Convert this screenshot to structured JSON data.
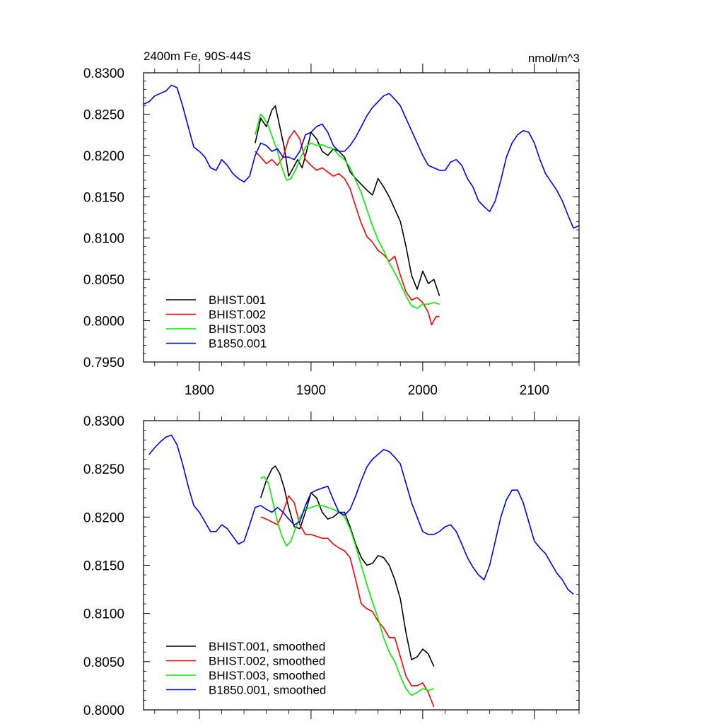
{
  "chart_data": [
    {
      "type": "line",
      "title": "2400m Fe, 90S-44S",
      "units": "nmol/m^3",
      "xlim": [
        1750,
        2140
      ],
      "ylim": [
        0.795,
        0.83
      ],
      "x_ticks": [
        1800,
        1900,
        2000,
        2100
      ],
      "y_ticks": [
        0.795,
        0.8,
        0.805,
        0.81,
        0.815,
        0.82,
        0.825,
        0.83
      ],
      "y_tick_labels": [
        "0.7950",
        "0.8000",
        "0.8050",
        "0.8100",
        "0.8150",
        "0.8200",
        "0.8250",
        "0.8300"
      ],
      "x_tick_labels": [
        "1800",
        "1900",
        "2000",
        "2100"
      ],
      "legend_position": "bottom-left",
      "grid": false,
      "series": [
        {
          "name": "BHIST.001",
          "color": "#000000",
          "x": [
            1850,
            1855,
            1860,
            1865,
            1868,
            1872,
            1876,
            1880,
            1884,
            1888,
            1892,
            1896,
            1900,
            1905,
            1910,
            1915,
            1920,
            1925,
            1930,
            1935,
            1940,
            1945,
            1950,
            1955,
            1960,
            1965,
            1970,
            1975,
            1980,
            1985,
            1990,
            1995,
            2000,
            2005,
            2010,
            2015
          ],
          "y": [
            0.8215,
            0.8245,
            0.8235,
            0.8255,
            0.826,
            0.8235,
            0.821,
            0.8175,
            0.8185,
            0.8195,
            0.8185,
            0.8205,
            0.8228,
            0.822,
            0.8205,
            0.82,
            0.8208,
            0.8205,
            0.8198,
            0.818,
            0.8172,
            0.8165,
            0.8158,
            0.8152,
            0.8172,
            0.8162,
            0.815,
            0.8135,
            0.812,
            0.809,
            0.8055,
            0.8038,
            0.806,
            0.8045,
            0.805,
            0.803
          ]
        },
        {
          "name": "BHIST.002",
          "color": "#ff0000",
          "x": [
            1850,
            1855,
            1860,
            1865,
            1870,
            1875,
            1880,
            1885,
            1890,
            1895,
            1900,
            1905,
            1910,
            1915,
            1920,
            1925,
            1930,
            1935,
            1940,
            1945,
            1950,
            1955,
            1960,
            1965,
            1970,
            1975,
            1980,
            1985,
            1990,
            1995,
            2000,
            2005,
            2008,
            2012,
            2015
          ],
          "y": [
            0.8205,
            0.8198,
            0.819,
            0.8195,
            0.8188,
            0.8198,
            0.822,
            0.823,
            0.822,
            0.8195,
            0.8188,
            0.8182,
            0.8185,
            0.818,
            0.8175,
            0.8178,
            0.8172,
            0.816,
            0.8138,
            0.8118,
            0.8102,
            0.8095,
            0.8085,
            0.808,
            0.8072,
            0.8078,
            0.8055,
            0.8035,
            0.8025,
            0.8028,
            0.8022,
            0.801,
            0.7995,
            0.8005,
            0.8005
          ]
        },
        {
          "name": "BHIST.003",
          "color": "#00ee00",
          "x": [
            1850,
            1855,
            1858,
            1862,
            1866,
            1870,
            1874,
            1878,
            1882,
            1886,
            1890,
            1895,
            1900,
            1905,
            1910,
            1915,
            1920,
            1925,
            1930,
            1935,
            1940,
            1945,
            1950,
            1955,
            1960,
            1965,
            1970,
            1975,
            1980,
            1985,
            1990,
            1995,
            2000,
            2005,
            2010,
            2015
          ],
          "y": [
            0.8225,
            0.825,
            0.8245,
            0.8235,
            0.822,
            0.8205,
            0.8185,
            0.817,
            0.8172,
            0.8182,
            0.8195,
            0.821,
            0.8215,
            0.8212,
            0.8213,
            0.821,
            0.8208,
            0.82,
            0.8195,
            0.8185,
            0.817,
            0.8155,
            0.8135,
            0.8115,
            0.8098,
            0.8085,
            0.807,
            0.8058,
            0.8045,
            0.803,
            0.8018,
            0.8015,
            0.802,
            0.802,
            0.8022,
            0.802
          ]
        },
        {
          "name": "B1850.001",
          "color": "#0000ee",
          "x": [
            1750,
            1755,
            1760,
            1765,
            1770,
            1775,
            1780,
            1785,
            1790,
            1795,
            1800,
            1805,
            1810,
            1815,
            1820,
            1825,
            1830,
            1835,
            1840,
            1845,
            1850,
            1855,
            1860,
            1865,
            1870,
            1875,
            1880,
            1885,
            1890,
            1895,
            1900,
            1905,
            1910,
            1915,
            1920,
            1925,
            1930,
            1935,
            1940,
            1945,
            1950,
            1955,
            1960,
            1965,
            1970,
            1975,
            1980,
            1985,
            1990,
            1995,
            2000,
            2005,
            2010,
            2015,
            2020,
            2025,
            2030,
            2035,
            2040,
            2045,
            2050,
            2055,
            2060,
            2065,
            2070,
            2075,
            2080,
            2085,
            2090,
            2095,
            2100,
            2105,
            2110,
            2115,
            2120,
            2125,
            2130,
            2135,
            2140
          ],
          "y": [
            0.8262,
            0.8265,
            0.8272,
            0.8275,
            0.8278,
            0.8285,
            0.8282,
            0.826,
            0.8235,
            0.821,
            0.8205,
            0.8198,
            0.8185,
            0.8182,
            0.8195,
            0.8188,
            0.8178,
            0.8172,
            0.8168,
            0.8175,
            0.82,
            0.8215,
            0.8212,
            0.8205,
            0.8208,
            0.8198,
            0.8198,
            0.8195,
            0.8205,
            0.8225,
            0.8228,
            0.8235,
            0.8238,
            0.8228,
            0.8212,
            0.8205,
            0.8205,
            0.8212,
            0.8222,
            0.8235,
            0.8248,
            0.8258,
            0.8265,
            0.8272,
            0.8275,
            0.8268,
            0.826,
            0.8245,
            0.823,
            0.8215,
            0.82,
            0.8188,
            0.8185,
            0.8182,
            0.8182,
            0.8192,
            0.8195,
            0.8188,
            0.8172,
            0.8162,
            0.8145,
            0.8138,
            0.8132,
            0.8145,
            0.817,
            0.8198,
            0.8215,
            0.8225,
            0.823,
            0.8228,
            0.8215,
            0.8195,
            0.8178,
            0.8168,
            0.8158,
            0.8145,
            0.8128,
            0.8112,
            0.8115
          ]
        }
      ]
    },
    {
      "type": "line",
      "title": "",
      "xlim": [
        1750,
        2140
      ],
      "ylim": [
        0.8,
        0.83
      ],
      "x_ticks": [
        1800,
        1900,
        2000,
        2100
      ],
      "y_ticks": [
        0.8,
        0.805,
        0.81,
        0.815,
        0.82,
        0.825,
        0.83
      ],
      "y_tick_labels": [
        "0.8000",
        "0.8050",
        "0.8100",
        "0.8150",
        "0.8200",
        "0.8250",
        "0.8300"
      ],
      "legend_position": "bottom-left",
      "grid": false,
      "series": [
        {
          "name": "BHIST.001, smoothed",
          "color": "#000000",
          "x": [
            1855,
            1860,
            1865,
            1868,
            1872,
            1876,
            1880,
            1885,
            1890,
            1895,
            1900,
            1905,
            1910,
            1915,
            1920,
            1925,
            1930,
            1935,
            1940,
            1945,
            1950,
            1955,
            1960,
            1965,
            1970,
            1975,
            1980,
            1985,
            1990,
            1995,
            2000,
            2005,
            2010
          ],
          "y": [
            0.822,
            0.8238,
            0.825,
            0.8253,
            0.8245,
            0.823,
            0.821,
            0.819,
            0.8188,
            0.8205,
            0.8225,
            0.822,
            0.8205,
            0.8198,
            0.82,
            0.8205,
            0.8205,
            0.819,
            0.8172,
            0.8158,
            0.815,
            0.8152,
            0.816,
            0.8158,
            0.815,
            0.8135,
            0.8115,
            0.808,
            0.8052,
            0.8055,
            0.8063,
            0.8058,
            0.8045
          ]
        },
        {
          "name": "BHIST.002, smoothed",
          "color": "#ff0000",
          "x": [
            1855,
            1860,
            1865,
            1870,
            1875,
            1880,
            1885,
            1890,
            1895,
            1900,
            1905,
            1910,
            1915,
            1920,
            1925,
            1930,
            1935,
            1940,
            1945,
            1950,
            1955,
            1960,
            1965,
            1970,
            1975,
            1980,
            1985,
            1990,
            1995,
            2000,
            2005,
            2010
          ],
          "y": [
            0.82,
            0.8198,
            0.8195,
            0.8192,
            0.8205,
            0.8222,
            0.8215,
            0.8192,
            0.8182,
            0.8182,
            0.818,
            0.8178,
            0.8178,
            0.8172,
            0.8168,
            0.8165,
            0.8158,
            0.8135,
            0.811,
            0.8105,
            0.8102,
            0.8092,
            0.8085,
            0.8075,
            0.8075,
            0.8055,
            0.8035,
            0.8025,
            0.8025,
            0.8028,
            0.8018,
            0.8003
          ]
        },
        {
          "name": "BHIST.003, smoothed",
          "color": "#00ee00",
          "x": [
            1855,
            1858,
            1862,
            1866,
            1870,
            1874,
            1878,
            1882,
            1886,
            1890,
            1895,
            1900,
            1905,
            1910,
            1915,
            1920,
            1925,
            1930,
            1935,
            1940,
            1945,
            1950,
            1955,
            1960,
            1965,
            1970,
            1975,
            1980,
            1985,
            1990,
            1995,
            2000,
            2005,
            2010
          ],
          "y": [
            0.824,
            0.8242,
            0.8235,
            0.8215,
            0.8195,
            0.818,
            0.817,
            0.8175,
            0.8188,
            0.82,
            0.8208,
            0.821,
            0.8212,
            0.8212,
            0.821,
            0.8208,
            0.8205,
            0.82,
            0.8188,
            0.817,
            0.815,
            0.813,
            0.8112,
            0.8095,
            0.8075,
            0.806,
            0.805,
            0.8035,
            0.8022,
            0.8015,
            0.8018,
            0.8022,
            0.802,
            0.8022
          ]
        },
        {
          "name": "B1850.001, smoothed",
          "color": "#0000ee",
          "x": [
            1755,
            1760,
            1765,
            1770,
            1775,
            1780,
            1785,
            1790,
            1795,
            1800,
            1805,
            1810,
            1815,
            1820,
            1825,
            1830,
            1835,
            1840,
            1845,
            1850,
            1855,
            1860,
            1865,
            1870,
            1875,
            1880,
            1885,
            1890,
            1895,
            1900,
            1905,
            1910,
            1915,
            1920,
            1925,
            1930,
            1935,
            1940,
            1945,
            1950,
            1955,
            1960,
            1965,
            1970,
            1975,
            1980,
            1985,
            1990,
            1995,
            2000,
            2005,
            2010,
            2015,
            2020,
            2025,
            2030,
            2035,
            2040,
            2045,
            2050,
            2055,
            2060,
            2065,
            2070,
            2075,
            2080,
            2085,
            2090,
            2095,
            2100,
            2105,
            2110,
            2115,
            2120,
            2125,
            2130,
            2135
          ],
          "y": [
            0.8265,
            0.8272,
            0.8278,
            0.8283,
            0.8285,
            0.8275,
            0.8255,
            0.8232,
            0.8212,
            0.8205,
            0.8195,
            0.8185,
            0.8185,
            0.8192,
            0.8188,
            0.818,
            0.8172,
            0.8175,
            0.8192,
            0.821,
            0.8212,
            0.8208,
            0.8205,
            0.821,
            0.8205,
            0.8198,
            0.8192,
            0.8195,
            0.8212,
            0.8225,
            0.8228,
            0.823,
            0.8232,
            0.8218,
            0.8205,
            0.8202,
            0.8208,
            0.8222,
            0.8238,
            0.8252,
            0.826,
            0.8265,
            0.827,
            0.8268,
            0.8262,
            0.8255,
            0.8235,
            0.8215,
            0.82,
            0.8185,
            0.8182,
            0.8182,
            0.8185,
            0.819,
            0.8192,
            0.8185,
            0.8172,
            0.8158,
            0.8148,
            0.814,
            0.8135,
            0.815,
            0.8175,
            0.82,
            0.8218,
            0.8228,
            0.8228,
            0.8215,
            0.8195,
            0.8175,
            0.8168,
            0.8162,
            0.8152,
            0.8142,
            0.8135,
            0.8125,
            0.812
          ]
        }
      ]
    }
  ]
}
